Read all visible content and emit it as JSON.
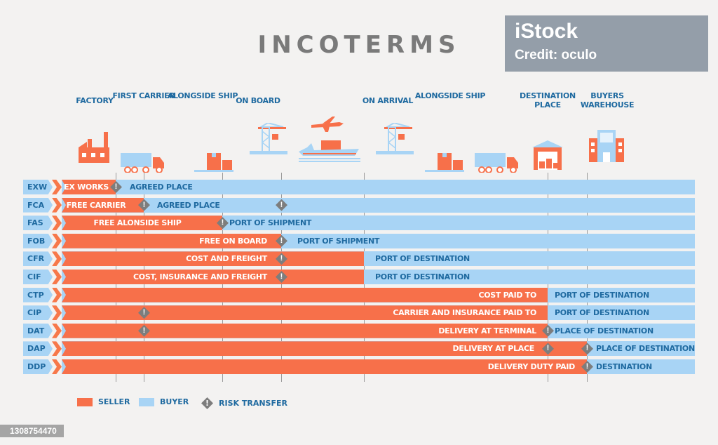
{
  "title": "INCOTERMS",
  "points": [
    {
      "key": "factory",
      "label": "FACTORY",
      "icon": "factory-icon"
    },
    {
      "key": "first_carrier",
      "label": "FIRST CARRIER",
      "icon": "truck-icon"
    },
    {
      "key": "alongside_ship",
      "label": "ALONGSIDE SHIP",
      "icon": "boxes-icon"
    },
    {
      "key": "on_board",
      "label": "ON BOARD",
      "icon": "crane-icon"
    },
    {
      "key": "transit",
      "label": "",
      "icon": "plane-ship-icon"
    },
    {
      "key": "on_arrival",
      "label": "ON ARRIVAL",
      "icon": "crane-icon"
    },
    {
      "key": "alongside_ship_dest",
      "label": "ALONGSIDE SHIP",
      "icon": "boxes-icon"
    },
    {
      "key": "road",
      "label": "",
      "icon": "truck-icon"
    },
    {
      "key": "destination_place",
      "label": "DESTINATION PLACE",
      "icon": "warehouse-icon"
    },
    {
      "key": "buyers_warehouse",
      "label": "BUYERS WAREHOUSE",
      "icon": "office-building-icon"
    }
  ],
  "rows": [
    {
      "code": "EXW",
      "seller": "EX WORKS",
      "buyer": "AGREED PLACE",
      "seller_until": "factory",
      "risk": [
        "factory"
      ]
    },
    {
      "code": "FCA",
      "seller": "FREE CARRIER",
      "buyer": "AGREED PLACE",
      "seller_until": "first_carrier",
      "risk": [
        "first_carrier",
        "on_board"
      ]
    },
    {
      "code": "FAS",
      "seller": "FREE ALONSIDE SHIP",
      "buyer": "PORT OF SHIPMENT",
      "seller_until": "alongside_ship",
      "risk": [
        "alongside_ship"
      ]
    },
    {
      "code": "FOB",
      "seller": "FREE ON BOARD",
      "buyer": "PORT OF SHIPMENT",
      "seller_until": "on_board",
      "risk": [
        "on_board"
      ]
    },
    {
      "code": "CFR",
      "seller": "COST AND FREIGHT",
      "buyer": "PORT OF DESTINATION",
      "seller_until": "on_arrival",
      "risk": [
        "on_board"
      ]
    },
    {
      "code": "CIF",
      "seller": "COST, INSURANCE AND FREIGHT",
      "buyer": "PORT OF DESTINATION",
      "seller_until": "on_arrival",
      "risk": [
        "on_board"
      ]
    },
    {
      "code": "CTP",
      "seller": "COST PAID TO",
      "buyer": "PORT OF DESTINATION",
      "seller_until": "destination_place",
      "risk": []
    },
    {
      "code": "CIP",
      "seller": "CARRIER AND INSURANCE PAID TO",
      "buyer": "PORT OF DESTINATION",
      "seller_until": "destination_place",
      "risk": [
        "first_carrier"
      ]
    },
    {
      "code": "DAT",
      "seller": "DELIVERY AT TERMINAL",
      "buyer": "PLACE OF DESTINATION",
      "seller_until": "destination_place",
      "risk": [
        "first_carrier",
        "destination_place"
      ]
    },
    {
      "code": "DAP",
      "seller": "DELIVERY AT PLACE",
      "buyer": "PLACE OF DESTINATION",
      "seller_until": "buyers_warehouse",
      "risk": [
        "destination_place",
        "buyers_warehouse"
      ]
    },
    {
      "code": "DDP",
      "seller": "DELIVERY DUTY PAID",
      "buyer": "DESTINATION",
      "seller_until": "buyers_warehouse",
      "risk": [
        "buyers_warehouse"
      ]
    }
  ],
  "legend": {
    "seller": "SELLER",
    "buyer": "BUYER",
    "risk": "RISK TRANSFER"
  },
  "colors": {
    "seller": "#f7704a",
    "buyer": "#a8d4f5",
    "risk": "#7d7d7d",
    "text": "#1f6aa0"
  },
  "watermark": {
    "brand": "iStock",
    "credit": "Credit: oculo"
  },
  "image_id": "1308754470"
}
